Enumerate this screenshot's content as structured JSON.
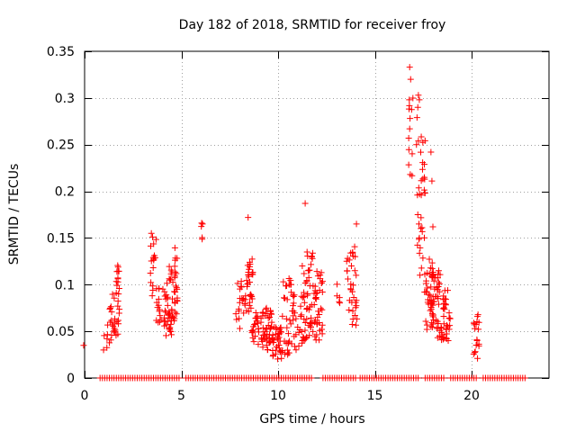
{
  "chart_data": {
    "type": "scatter",
    "title": "Day 182 of 2018, SRMTID for receiver froy",
    "xlabel": "GPS time / hours",
    "ylabel": "SRMTID / TECUs",
    "xlim": [
      0,
      24
    ],
    "ylim": [
      0,
      0.35
    ],
    "xticks": [
      0,
      5,
      10,
      15,
      20
    ],
    "xtick_labels": [
      "0",
      "5",
      "10",
      "15",
      "20"
    ],
    "yticks": [
      0,
      0.05,
      0.1,
      0.15,
      0.2,
      0.25,
      0.3,
      0.35
    ],
    "ytick_labels": [
      "0",
      "0.05",
      "0.1",
      "0.15",
      "0.2",
      "0.25",
      "0.3",
      "0.35"
    ],
    "grid": true,
    "marker": "+",
    "color": "#ff0000",
    "zero_band": {
      "start": 0.8,
      "end": 22.8,
      "step": 0.12,
      "gaps": [
        [
          5.0,
          5.2
        ],
        [
          11.8,
          12.2
        ],
        [
          14.1,
          14.2
        ],
        [
          17.3,
          17.5
        ],
        [
          18.6,
          18.8
        ],
        [
          20.3,
          20.5
        ]
      ]
    },
    "clusters": [
      {
        "t0": 1.0,
        "t1": 1.3,
        "ymin": 0.03,
        "ymax": 0.06,
        "n": 6
      },
      {
        "t0": 1.3,
        "t1": 1.6,
        "ymin": 0.04,
        "ymax": 0.09,
        "n": 18
      },
      {
        "t0": 1.6,
        "t1": 1.8,
        "ymin": 0.04,
        "ymax": 0.125,
        "n": 22
      },
      {
        "t0": 3.4,
        "t1": 3.7,
        "ymin": 0.08,
        "ymax": 0.155,
        "n": 16
      },
      {
        "t0": 3.7,
        "t1": 4.2,
        "ymin": 0.055,
        "ymax": 0.1,
        "n": 24
      },
      {
        "t0": 4.2,
        "t1": 4.5,
        "ymin": 0.045,
        "ymax": 0.12,
        "n": 28
      },
      {
        "t0": 4.5,
        "t1": 4.8,
        "ymin": 0.06,
        "ymax": 0.14,
        "n": 30
      },
      {
        "t0": 6.0,
        "t1": 6.1,
        "ymin": 0.14,
        "ymax": 0.166,
        "n": 4
      },
      {
        "t0": 7.8,
        "t1": 8.4,
        "ymin": 0.05,
        "ymax": 0.105,
        "n": 24
      },
      {
        "t0": 8.4,
        "t1": 8.7,
        "ymin": 0.04,
        "ymax": 0.13,
        "n": 30
      },
      {
        "t0": 8.7,
        "t1": 9.2,
        "ymin": 0.03,
        "ymax": 0.07,
        "n": 24
      },
      {
        "t0": 9.2,
        "t1": 9.7,
        "ymin": 0.03,
        "ymax": 0.075,
        "n": 40
      },
      {
        "t0": 9.7,
        "t1": 10.2,
        "ymin": 0.02,
        "ymax": 0.055,
        "n": 34
      },
      {
        "t0": 10.2,
        "t1": 10.7,
        "ymin": 0.025,
        "ymax": 0.11,
        "n": 30
      },
      {
        "t0": 10.7,
        "t1": 11.3,
        "ymin": 0.03,
        "ymax": 0.09,
        "n": 28
      },
      {
        "t0": 11.3,
        "t1": 11.8,
        "ymin": 0.04,
        "ymax": 0.135,
        "n": 44
      },
      {
        "t0": 11.8,
        "t1": 12.3,
        "ymin": 0.04,
        "ymax": 0.115,
        "n": 38
      },
      {
        "t0": 13.0,
        "t1": 13.3,
        "ymin": 0.08,
        "ymax": 0.11,
        "n": 5
      },
      {
        "t0": 13.5,
        "t1": 14.1,
        "ymin": 0.055,
        "ymax": 0.145,
        "n": 34
      },
      {
        "t0": 16.7,
        "t1": 17.0,
        "ymin": 0.215,
        "ymax": 0.3,
        "n": 8
      },
      {
        "t0": 17.2,
        "t1": 17.6,
        "ymin": 0.09,
        "ymax": 0.26,
        "n": 30
      },
      {
        "t0": 17.6,
        "t1": 18.0,
        "ymin": 0.05,
        "ymax": 0.13,
        "n": 36
      },
      {
        "t0": 18.0,
        "t1": 18.5,
        "ymin": 0.04,
        "ymax": 0.12,
        "n": 40
      },
      {
        "t0": 18.5,
        "t1": 18.9,
        "ymin": 0.04,
        "ymax": 0.1,
        "n": 32
      },
      {
        "t0": 20.1,
        "t1": 20.4,
        "ymin": 0.02,
        "ymax": 0.07,
        "n": 18
      }
    ],
    "points": [
      [
        -0.05,
        0.035
      ],
      [
        0.98,
        0.03
      ],
      [
        3.45,
        0.155
      ],
      [
        6.05,
        0.166
      ],
      [
        8.45,
        0.172
      ],
      [
        11.4,
        0.187
      ],
      [
        14.05,
        0.165
      ],
      [
        11.25,
        0.12
      ],
      [
        16.8,
        0.333
      ],
      [
        16.85,
        0.32
      ],
      [
        16.78,
        0.298
      ],
      [
        16.82,
        0.278
      ],
      [
        16.8,
        0.267
      ],
      [
        16.75,
        0.257
      ],
      [
        16.83,
        0.218
      ],
      [
        17.25,
        0.303
      ],
      [
        17.3,
        0.298
      ],
      [
        17.22,
        0.29
      ],
      [
        17.18,
        0.279
      ],
      [
        17.25,
        0.254
      ],
      [
        17.15,
        0.25
      ],
      [
        17.2,
        0.196
      ],
      [
        17.22,
        0.175
      ],
      [
        17.28,
        0.165
      ],
      [
        17.3,
        0.15
      ],
      [
        17.9,
        0.242
      ],
      [
        17.95,
        0.211
      ],
      [
        18.0,
        0.162
      ],
      [
        17.4,
        0.196
      ]
    ]
  }
}
